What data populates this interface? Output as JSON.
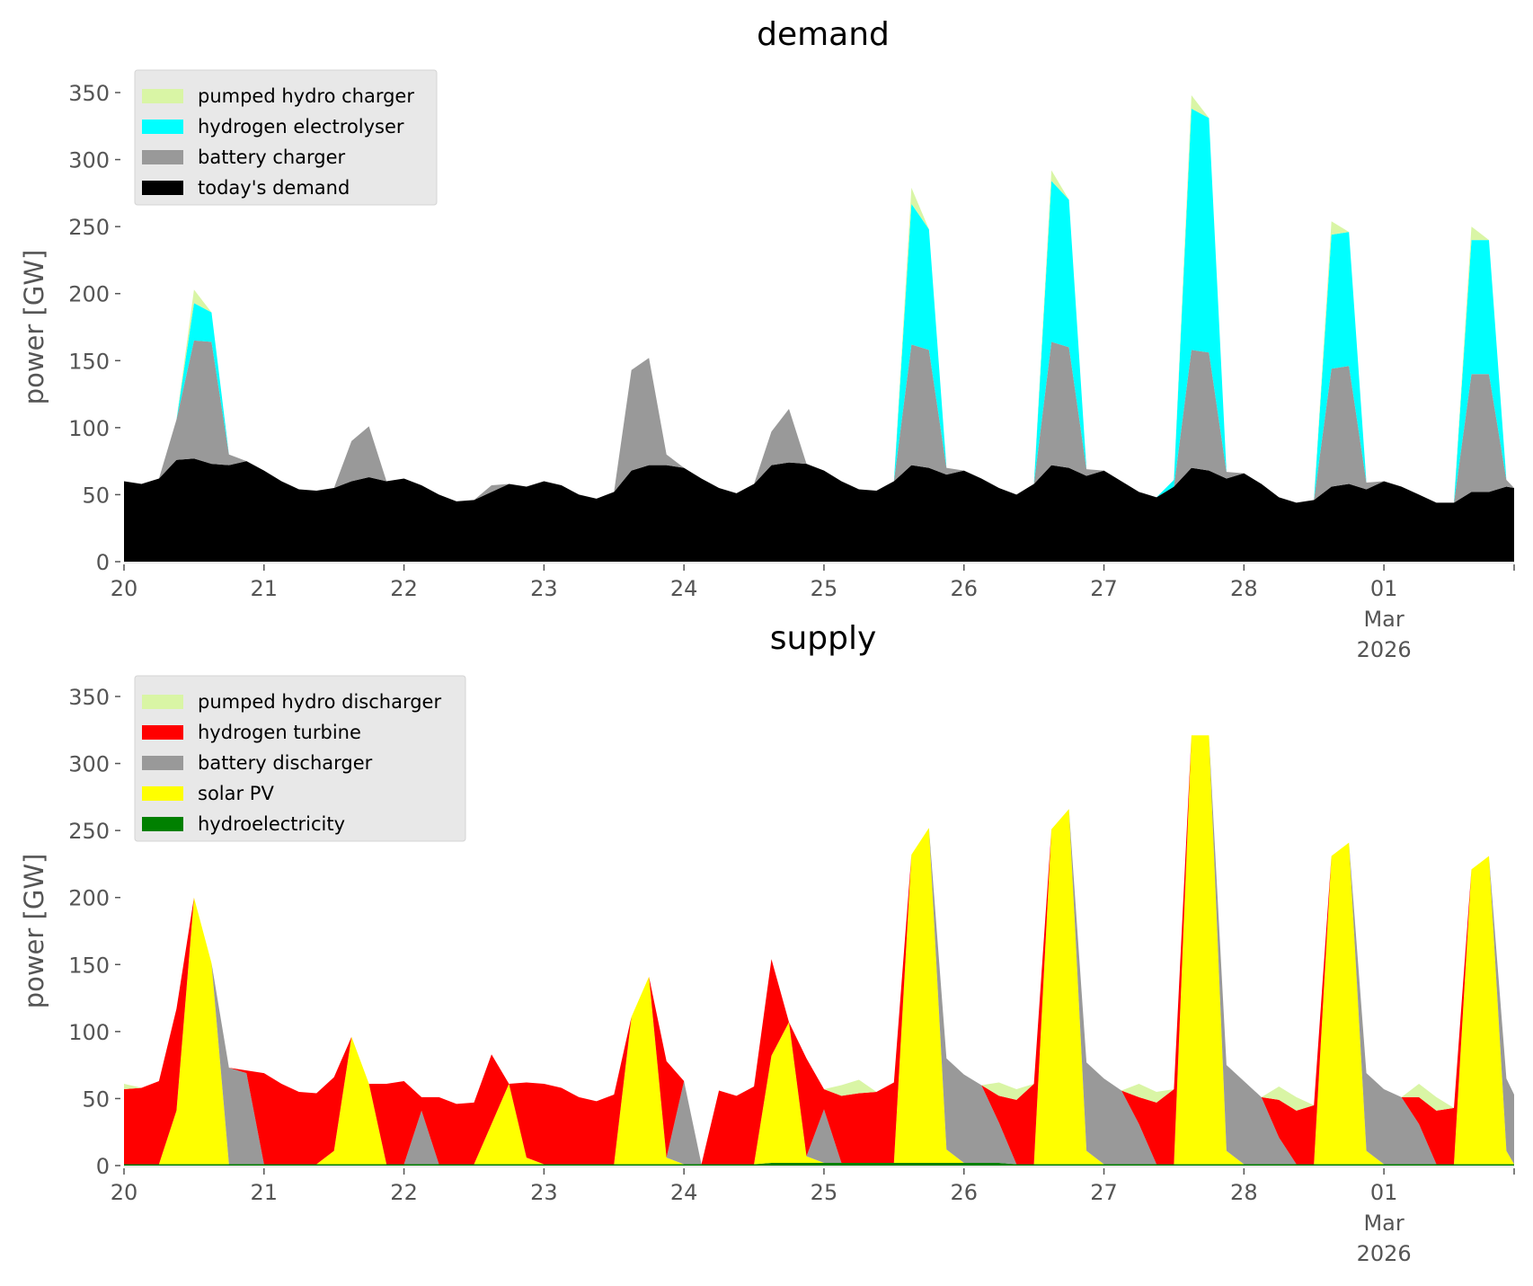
{
  "chart_data": [
    {
      "type": "area",
      "stacked": true,
      "title": "demand",
      "xlabel": "",
      "ylabel": "power [GW]",
      "ylim": [
        0,
        365
      ],
      "yticks": [
        0,
        50,
        100,
        150,
        200,
        250,
        300,
        350
      ],
      "xlim_days": [
        0,
        9.93
      ],
      "xticks": [
        {
          "day": 0,
          "label": [
            "20"
          ]
        },
        {
          "day": 1,
          "label": [
            "21"
          ]
        },
        {
          "day": 2,
          "label": [
            "22"
          ]
        },
        {
          "day": 3,
          "label": [
            "23"
          ]
        },
        {
          "day": 4,
          "label": [
            "24"
          ]
        },
        {
          "day": 5,
          "label": [
            "25"
          ]
        },
        {
          "day": 6,
          "label": [
            "26"
          ]
        },
        {
          "day": 7,
          "label": [
            "27"
          ]
        },
        {
          "day": 8,
          "label": [
            "28"
          ]
        },
        {
          "day": 9,
          "label": [
            "01",
            "Mar",
            "2026"
          ]
        }
      ],
      "x_step_hours": 3,
      "legend_position": "top-left",
      "series": [
        {
          "name": "today's demand",
          "color": "#000000",
          "values": [
            60,
            58,
            62,
            76,
            77,
            73,
            72,
            75,
            68,
            60,
            54,
            53,
            55,
            60,
            63,
            60,
            62,
            57,
            50,
            45,
            46,
            52,
            58,
            56,
            60,
            57,
            50,
            47,
            52,
            68,
            72,
            72,
            70,
            62,
            55,
            51,
            58,
            72,
            74,
            73,
            68,
            60,
            54,
            53,
            60,
            72,
            70,
            65,
            68,
            62,
            55,
            50,
            58,
            72,
            70,
            64,
            68,
            60,
            52,
            48,
            56,
            70,
            68,
            62,
            66,
            58,
            48,
            44,
            46,
            56,
            58,
            54,
            60,
            56,
            50,
            44,
            44,
            52,
            52,
            56,
            55,
            50
          ]
        },
        {
          "name": "battery charger",
          "color": "#999999",
          "values": [
            0,
            0,
            0,
            30,
            88,
            91,
            8,
            0,
            0,
            0,
            0,
            0,
            0,
            30,
            38,
            0,
            0,
            0,
            0,
            0,
            0,
            5,
            0,
            0,
            0,
            0,
            0,
            0,
            0,
            75,
            80,
            8,
            0,
            0,
            0,
            0,
            0,
            25,
            40,
            0,
            0,
            0,
            0,
            0,
            0,
            90,
            88,
            5,
            0,
            0,
            0,
            0,
            0,
            92,
            90,
            5,
            0,
            0,
            0,
            0,
            0,
            88,
            88,
            5,
            0,
            0,
            0,
            0,
            0,
            88,
            88,
            5,
            0,
            0,
            0,
            0,
            0,
            88,
            88,
            5,
            0,
            0
          ]
        },
        {
          "name": "hydrogen electrolyser",
          "color": "#00ffff",
          "values": [
            0,
            0,
            0,
            0,
            28,
            22,
            0,
            0,
            0,
            0,
            0,
            0,
            0,
            0,
            0,
            0,
            0,
            0,
            0,
            0,
            0,
            0,
            0,
            0,
            0,
            0,
            0,
            0,
            0,
            0,
            0,
            0,
            0,
            0,
            0,
            0,
            0,
            0,
            0,
            0,
            0,
            0,
            0,
            0,
            0,
            105,
            90,
            0,
            0,
            0,
            0,
            0,
            0,
            120,
            110,
            0,
            0,
            0,
            0,
            0,
            5,
            180,
            175,
            0,
            0,
            0,
            0,
            0,
            0,
            100,
            100,
            0,
            0,
            0,
            0,
            0,
            0,
            100,
            100,
            0,
            0,
            0
          ]
        },
        {
          "name": "pumped hydro charger",
          "color": "#d9f5a5",
          "values": [
            0,
            0,
            0,
            0,
            10,
            0,
            0,
            0,
            0,
            0,
            0,
            0,
            0,
            0,
            0,
            0,
            0,
            0,
            0,
            0,
            0,
            0,
            0,
            0,
            0,
            0,
            0,
            0,
            0,
            0,
            0,
            0,
            0,
            0,
            0,
            0,
            0,
            0,
            0,
            0,
            0,
            0,
            0,
            0,
            0,
            12,
            0,
            0,
            0,
            0,
            0,
            0,
            0,
            8,
            0,
            0,
            0,
            0,
            0,
            0,
            0,
            10,
            0,
            0,
            0,
            0,
            0,
            0,
            0,
            10,
            0,
            0,
            0,
            0,
            0,
            0,
            0,
            10,
            0,
            0,
            0,
            0
          ]
        }
      ]
    },
    {
      "type": "area",
      "stacked": true,
      "title": "supply",
      "xlabel": "",
      "ylabel": "power [GW]",
      "ylim": [
        0,
        365
      ],
      "yticks": [
        0,
        50,
        100,
        150,
        200,
        250,
        300,
        350
      ],
      "xlim_days": [
        0,
        9.93
      ],
      "xticks": [
        {
          "day": 0,
          "label": [
            "20"
          ]
        },
        {
          "day": 1,
          "label": [
            "21"
          ]
        },
        {
          "day": 2,
          "label": [
            "22"
          ]
        },
        {
          "day": 3,
          "label": [
            "23"
          ]
        },
        {
          "day": 4,
          "label": [
            "24"
          ]
        },
        {
          "day": 5,
          "label": [
            "25"
          ]
        },
        {
          "day": 6,
          "label": [
            "26"
          ]
        },
        {
          "day": 7,
          "label": [
            "27"
          ]
        },
        {
          "day": 8,
          "label": [
            "28"
          ]
        },
        {
          "day": 9,
          "label": [
            "01",
            "Mar",
            "2026"
          ]
        }
      ],
      "x_step_hours": 3,
      "legend_position": "top-left",
      "series": [
        {
          "name": "hydroelectricity",
          "color": "#008000",
          "values": [
            1,
            1,
            1,
            1,
            1,
            1,
            1,
            1,
            1,
            1,
            1,
            1,
            1,
            1,
            1,
            1,
            1,
            1,
            1,
            1,
            1,
            1,
            1,
            1,
            1,
            1,
            1,
            1,
            1,
            1,
            1,
            1,
            1,
            1,
            1,
            1,
            1,
            2,
            2,
            2,
            2,
            2,
            2,
            2,
            2,
            2,
            2,
            2,
            2,
            2,
            2,
            1,
            1,
            1,
            1,
            1,
            1,
            1,
            1,
            1,
            1,
            1,
            1,
            1,
            1,
            1,
            1,
            1,
            1,
            1,
            1,
            1,
            1,
            1,
            1,
            1,
            1,
            1,
            1,
            1,
            1,
            1
          ]
        },
        {
          "name": "solar PV",
          "color": "#ffff00",
          "values": [
            0,
            0,
            0,
            40,
            199,
            150,
            0,
            0,
            0,
            0,
            0,
            0,
            10,
            95,
            60,
            0,
            0,
            0,
            0,
            0,
            0,
            30,
            60,
            5,
            0,
            0,
            0,
            0,
            0,
            110,
            140,
            5,
            0,
            0,
            0,
            0,
            0,
            80,
            105,
            5,
            0,
            0,
            0,
            0,
            0,
            230,
            250,
            10,
            0,
            0,
            0,
            0,
            0,
            250,
            265,
            10,
            0,
            0,
            0,
            0,
            0,
            320,
            320,
            10,
            0,
            0,
            0,
            0,
            0,
            230,
            240,
            10,
            0,
            0,
            0,
            0,
            0,
            220,
            230,
            10,
            0,
            0
          ]
        },
        {
          "name": "battery discharger",
          "color": "#999999",
          "values": [
            0,
            0,
            0,
            0,
            0,
            0,
            72,
            68,
            0,
            0,
            0,
            0,
            0,
            0,
            0,
            0,
            0,
            40,
            0,
            0,
            0,
            0,
            0,
            0,
            0,
            0,
            0,
            0,
            0,
            0,
            0,
            0,
            62,
            0,
            0,
            0,
            0,
            0,
            0,
            0,
            40,
            0,
            0,
            0,
            0,
            0,
            0,
            68,
            66,
            58,
            30,
            0,
            0,
            0,
            0,
            66,
            64,
            55,
            30,
            0,
            0,
            0,
            0,
            64,
            62,
            50,
            20,
            0,
            0,
            0,
            0,
            58,
            56,
            50,
            30,
            0,
            0,
            0,
            0,
            54,
            52,
            50
          ]
        },
        {
          "name": "hydrogen turbine",
          "color": "#ff0000",
          "values": [
            56,
            57,
            62,
            76,
            0,
            0,
            0,
            2,
            68,
            60,
            54,
            53,
            55,
            0,
            0,
            60,
            62,
            10,
            50,
            45,
            46,
            52,
            0,
            56,
            60,
            57,
            50,
            47,
            52,
            0,
            0,
            72,
            0,
            0,
            55,
            51,
            58,
            72,
            0,
            73,
            15,
            50,
            52,
            53,
            60,
            0,
            0,
            0,
            0,
            0,
            20,
            48,
            60,
            0,
            0,
            0,
            0,
            0,
            20,
            46,
            56,
            0,
            0,
            0,
            0,
            0,
            28,
            40,
            44,
            0,
            0,
            0,
            0,
            0,
            20,
            40,
            42,
            0,
            0,
            0,
            0,
            0
          ]
        },
        {
          "name": "pumped hydro discharger",
          "color": "#d9f5a5",
          "values": [
            4,
            0,
            0,
            0,
            0,
            0,
            0,
            0,
            0,
            0,
            0,
            0,
            0,
            0,
            0,
            0,
            0,
            0,
            0,
            0,
            0,
            0,
            0,
            0,
            0,
            0,
            0,
            0,
            0,
            0,
            0,
            0,
            0,
            0,
            0,
            0,
            0,
            0,
            0,
            0,
            0,
            8,
            10,
            0,
            0,
            0,
            0,
            0,
            0,
            0,
            10,
            8,
            0,
            0,
            0,
            0,
            0,
            0,
            10,
            8,
            0,
            0,
            0,
            0,
            0,
            0,
            10,
            10,
            0,
            0,
            0,
            0,
            0,
            0,
            10,
            10,
            0,
            0,
            0,
            0,
            0,
            0
          ]
        }
      ]
    }
  ]
}
